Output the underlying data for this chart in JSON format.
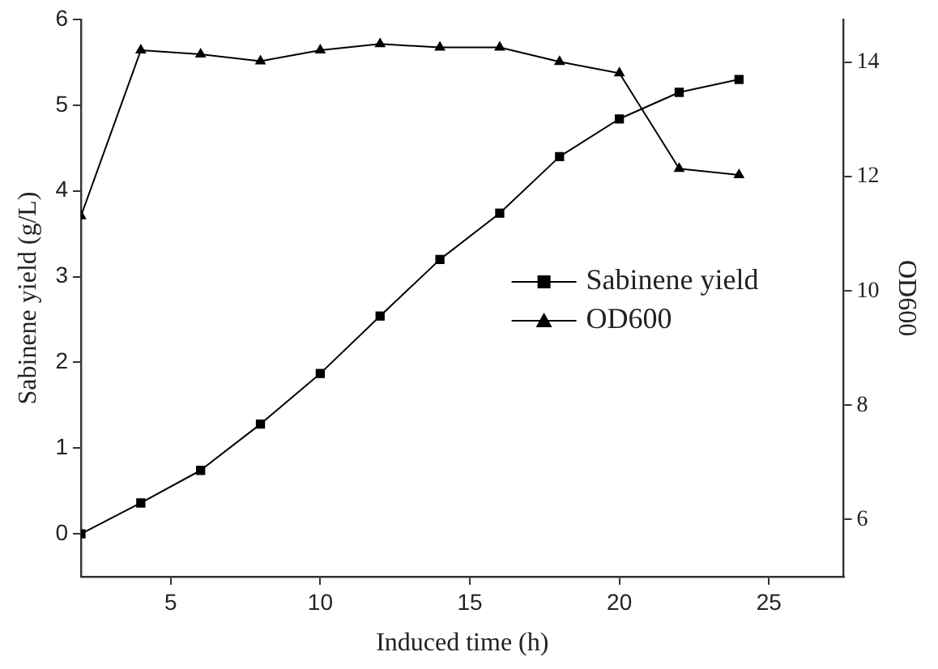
{
  "chart_data": {
    "type": "line",
    "xlabel": "Induced time (h)",
    "ylabel": "Sabinene yield (g/L)",
    "y2label": "OD600",
    "x": [
      2,
      4,
      6,
      8,
      10,
      12,
      14,
      16,
      18,
      20,
      22,
      24
    ],
    "series": [
      {
        "name": "Sabinene yield",
        "color": "#000000",
        "marker": "square",
        "values": [
          0,
          0.36,
          0.74,
          1.28,
          1.87,
          2.54,
          3.2,
          3.74,
          4.4,
          4.84,
          5.15,
          5.3
        ]
      },
      {
        "name": "OD600",
        "color": "#000000",
        "marker": "triangle",
        "axis": "y2",
        "values": [
          11.31,
          14.21,
          14.14,
          14.02,
          14.21,
          14.32,
          14.26,
          14.26,
          14.01,
          13.81,
          12.14,
          12.03
        ]
      }
    ],
    "xlim": [
      2,
      27.5
    ],
    "xticks": [
      5,
      10,
      15,
      20,
      25
    ],
    "ylim": [
      -0.5,
      6
    ],
    "yticks": [
      0,
      1,
      2,
      3,
      4,
      5,
      6
    ],
    "y2lim": [
      5,
      14.75
    ],
    "y2ticks": [
      6,
      8,
      10,
      12,
      14
    ],
    "grid": false,
    "legend": "right",
    "line_style": "solid"
  }
}
